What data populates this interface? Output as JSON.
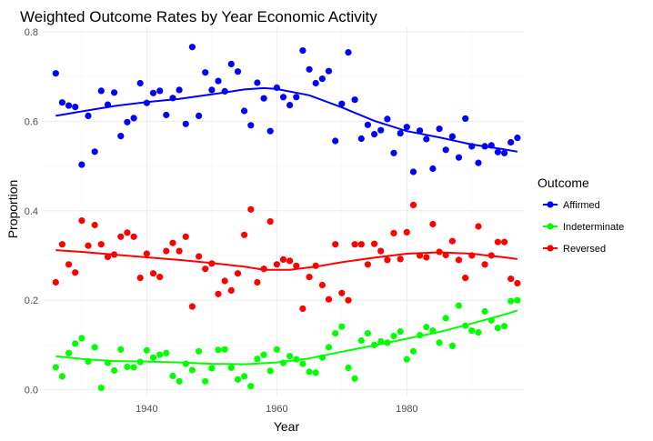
{
  "chart_data": {
    "type": "scatter",
    "title": "Weighted Outcome Rates by Year Economic Activity",
    "xlabel": "Year",
    "ylabel": "Proportion",
    "xlim": [
      1924,
      1998
    ],
    "ylim": [
      -0.015,
      0.81
    ],
    "x_ticks": [
      1940,
      1960,
      1980
    ],
    "x_tick_labels": [
      "1940",
      "1960",
      "1980"
    ],
    "y_ticks": [
      0.0,
      0.2,
      0.4,
      0.6,
      0.8
    ],
    "y_tick_labels": [
      "0.0",
      "0.2",
      "0.4",
      "0.6",
      "0.8"
    ],
    "grid": true,
    "legend": {
      "title": "Outcome",
      "position": "right"
    },
    "smoothed_trend_lines": true,
    "series": [
      {
        "name": "Affirmed",
        "color": "#0000ff",
        "points": [
          [
            1926,
            0.707
          ],
          [
            1927,
            0.642
          ],
          [
            1928,
            0.635
          ],
          [
            1929,
            0.632
          ],
          [
            1930,
            0.503
          ],
          [
            1931,
            0.612
          ],
          [
            1932,
            0.532
          ],
          [
            1933,
            0.668
          ],
          [
            1934,
            0.637
          ],
          [
            1935,
            0.664
          ],
          [
            1936,
            0.567
          ],
          [
            1937,
            0.598
          ],
          [
            1938,
            0.607
          ],
          [
            1939,
            0.685
          ],
          [
            1940,
            0.641
          ],
          [
            1941,
            0.663
          ],
          [
            1942,
            0.668
          ],
          [
            1943,
            0.614
          ],
          [
            1944,
            0.652
          ],
          [
            1945,
            0.67
          ],
          [
            1946,
            0.594
          ],
          [
            1947,
            0.766
          ],
          [
            1948,
            0.612
          ],
          [
            1949,
            0.709
          ],
          [
            1950,
            0.67
          ],
          [
            1951,
            0.69
          ],
          [
            1952,
            0.667
          ],
          [
            1953,
            0.728
          ],
          [
            1954,
            0.711
          ],
          [
            1955,
            0.623
          ],
          [
            1956,
            0.591
          ],
          [
            1957,
            0.686
          ],
          [
            1958,
            0.651
          ],
          [
            1959,
            0.578
          ],
          [
            1960,
            0.675
          ],
          [
            1961,
            0.654
          ],
          [
            1962,
            0.636
          ],
          [
            1963,
            0.654
          ],
          [
            1964,
            0.758
          ],
          [
            1965,
            0.716
          ],
          [
            1966,
            0.685
          ],
          [
            1967,
            0.695
          ],
          [
            1968,
            0.712
          ],
          [
            1969,
            0.556
          ],
          [
            1970,
            0.639
          ],
          [
            1971,
            0.754
          ],
          [
            1972,
            0.648
          ],
          [
            1973,
            0.561
          ],
          [
            1974,
            0.592
          ],
          [
            1975,
            0.571
          ],
          [
            1976,
            0.58
          ],
          [
            1977,
            0.605
          ],
          [
            1978,
            0.529
          ],
          [
            1979,
            0.573
          ],
          [
            1980,
            0.587
          ],
          [
            1981,
            0.487
          ],
          [
            1982,
            0.579
          ],
          [
            1983,
            0.56
          ],
          [
            1984,
            0.494
          ],
          [
            1985,
            0.583
          ],
          [
            1986,
            0.536
          ],
          [
            1987,
            0.566
          ],
          [
            1988,
            0.519
          ],
          [
            1989,
            0.606
          ],
          [
            1990,
            0.544
          ],
          [
            1991,
            0.507
          ],
          [
            1992,
            0.544
          ],
          [
            1993,
            0.546
          ],
          [
            1994,
            0.531
          ],
          [
            1995,
            0.529
          ],
          [
            1996,
            0.553
          ],
          [
            1997,
            0.563
          ]
        ],
        "trend": [
          [
            1926,
            0.612
          ],
          [
            1930,
            0.622
          ],
          [
            1935,
            0.634
          ],
          [
            1940,
            0.643
          ],
          [
            1945,
            0.65
          ],
          [
            1950,
            0.66
          ],
          [
            1955,
            0.671
          ],
          [
            1958,
            0.674
          ],
          [
            1960,
            0.672
          ],
          [
            1965,
            0.658
          ],
          [
            1970,
            0.631
          ],
          [
            1975,
            0.601
          ],
          [
            1980,
            0.578
          ],
          [
            1985,
            0.564
          ],
          [
            1990,
            0.548
          ],
          [
            1995,
            0.537
          ],
          [
            1997,
            0.532
          ]
        ]
      },
      {
        "name": "Indeterminate",
        "color": "#00ff00",
        "points": [
          [
            1926,
            0.05
          ],
          [
            1927,
            0.03
          ],
          [
            1928,
            0.082
          ],
          [
            1929,
            0.103
          ],
          [
            1930,
            0.115
          ],
          [
            1931,
            0.063
          ],
          [
            1932,
            0.095
          ],
          [
            1933,
            0.004
          ],
          [
            1934,
            0.06
          ],
          [
            1935,
            0.043
          ],
          [
            1936,
            0.09
          ],
          [
            1937,
            0.051
          ],
          [
            1938,
            0.05
          ],
          [
            1939,
            0.062
          ],
          [
            1940,
            0.088
          ],
          [
            1941,
            0.072
          ],
          [
            1942,
            0.078
          ],
          [
            1943,
            0.082
          ],
          [
            1944,
            0.031
          ],
          [
            1945,
            0.019
          ],
          [
            1946,
            0.058
          ],
          [
            1947,
            0.044
          ],
          [
            1948,
            0.086
          ],
          [
            1949,
            0.019
          ],
          [
            1950,
            0.048
          ],
          [
            1951,
            0.089
          ],
          [
            1952,
            0.09
          ],
          [
            1953,
            0.049
          ],
          [
            1954,
            0.023
          ],
          [
            1955,
            0.03
          ],
          [
            1956,
            0.008
          ],
          [
            1957,
            0.069
          ],
          [
            1958,
            0.078
          ],
          [
            1959,
            0.042
          ],
          [
            1960,
            0.09
          ],
          [
            1961,
            0.06
          ],
          [
            1962,
            0.075
          ],
          [
            1963,
            0.068
          ],
          [
            1964,
            0.058
          ],
          [
            1965,
            0.04
          ],
          [
            1966,
            0.038
          ],
          [
            1967,
            0.072
          ],
          [
            1968,
            0.095
          ],
          [
            1969,
            0.126
          ],
          [
            1970,
            0.141
          ],
          [
            1971,
            0.049
          ],
          [
            1972,
            0.025
          ],
          [
            1973,
            0.11
          ],
          [
            1974,
            0.126
          ],
          [
            1975,
            0.1
          ],
          [
            1976,
            0.108
          ],
          [
            1977,
            0.105
          ],
          [
            1978,
            0.12
          ],
          [
            1979,
            0.13
          ],
          [
            1980,
            0.068
          ],
          [
            1981,
            0.086
          ],
          [
            1982,
            0.122
          ],
          [
            1983,
            0.14
          ],
          [
            1984,
            0.132
          ],
          [
            1985,
            0.105
          ],
          [
            1986,
            0.16
          ],
          [
            1987,
            0.098
          ],
          [
            1988,
            0.188
          ],
          [
            1989,
            0.143
          ],
          [
            1990,
            0.132
          ],
          [
            1991,
            0.128
          ],
          [
            1992,
            0.175
          ],
          [
            1993,
            0.155
          ],
          [
            1994,
            0.138
          ],
          [
            1995,
            0.142
          ],
          [
            1996,
            0.198
          ],
          [
            1997,
            0.2
          ]
        ],
        "trend": [
          [
            1926,
            0.075
          ],
          [
            1930,
            0.069
          ],
          [
            1935,
            0.064
          ],
          [
            1940,
            0.063
          ],
          [
            1945,
            0.061
          ],
          [
            1950,
            0.058
          ],
          [
            1955,
            0.057
          ],
          [
            1960,
            0.061
          ],
          [
            1965,
            0.07
          ],
          [
            1970,
            0.085
          ],
          [
            1975,
            0.099
          ],
          [
            1980,
            0.114
          ],
          [
            1985,
            0.129
          ],
          [
            1990,
            0.148
          ],
          [
            1995,
            0.168
          ],
          [
            1997,
            0.177
          ]
        ]
      },
      {
        "name": "Reversed",
        "color": "#ff0000",
        "points": [
          [
            1926,
            0.24
          ],
          [
            1927,
            0.325
          ],
          [
            1928,
            0.28
          ],
          [
            1929,
            0.262
          ],
          [
            1930,
            0.378
          ],
          [
            1931,
            0.322
          ],
          [
            1932,
            0.368
          ],
          [
            1933,
            0.325
          ],
          [
            1934,
            0.297
          ],
          [
            1935,
            0.302
          ],
          [
            1936,
            0.342
          ],
          [
            1937,
            0.351
          ],
          [
            1938,
            0.342
          ],
          [
            1939,
            0.25
          ],
          [
            1940,
            0.304
          ],
          [
            1941,
            0.26
          ],
          [
            1942,
            0.252
          ],
          [
            1943,
            0.31
          ],
          [
            1944,
            0.328
          ],
          [
            1945,
            0.31
          ],
          [
            1946,
            0.342
          ],
          [
            1947,
            0.186
          ],
          [
            1948,
            0.298
          ],
          [
            1949,
            0.27
          ],
          [
            1950,
            0.282
          ],
          [
            1951,
            0.214
          ],
          [
            1952,
            0.243
          ],
          [
            1953,
            0.222
          ],
          [
            1954,
            0.26
          ],
          [
            1955,
            0.346
          ],
          [
            1956,
            0.403
          ],
          [
            1957,
            0.24
          ],
          [
            1958,
            0.27
          ],
          [
            1959,
            0.376
          ],
          [
            1960,
            0.28
          ],
          [
            1961,
            0.291
          ],
          [
            1962,
            0.288
          ],
          [
            1963,
            0.277
          ],
          [
            1964,
            0.181
          ],
          [
            1965,
            0.252
          ],
          [
            1966,
            0.277
          ],
          [
            1967,
            0.234
          ],
          [
            1968,
            0.202
          ],
          [
            1969,
            0.325
          ],
          [
            1970,
            0.216
          ],
          [
            1971,
            0.2
          ],
          [
            1972,
            0.325
          ],
          [
            1973,
            0.325
          ],
          [
            1974,
            0.28
          ],
          [
            1975,
            0.326
          ],
          [
            1976,
            0.31
          ],
          [
            1977,
            0.29
          ],
          [
            1978,
            0.35
          ],
          [
            1979,
            0.292
          ],
          [
            1980,
            0.352
          ],
          [
            1981,
            0.413
          ],
          [
            1982,
            0.3
          ],
          [
            1983,
            0.296
          ],
          [
            1984,
            0.37
          ],
          [
            1985,
            0.308
          ],
          [
            1986,
            0.301
          ],
          [
            1987,
            0.332
          ],
          [
            1988,
            0.29
          ],
          [
            1989,
            0.25
          ],
          [
            1990,
            0.3
          ],
          [
            1991,
            0.365
          ],
          [
            1992,
            0.28
          ],
          [
            1993,
            0.3
          ],
          [
            1994,
            0.33
          ],
          [
            1995,
            0.33
          ],
          [
            1996,
            0.248
          ],
          [
            1997,
            0.238
          ]
        ],
        "trend": [
          [
            1926,
            0.312
          ],
          [
            1930,
            0.308
          ],
          [
            1935,
            0.302
          ],
          [
            1940,
            0.296
          ],
          [
            1945,
            0.29
          ],
          [
            1950,
            0.283
          ],
          [
            1955,
            0.275
          ],
          [
            1958,
            0.268
          ],
          [
            1962,
            0.268
          ],
          [
            1966,
            0.275
          ],
          [
            1970,
            0.285
          ],
          [
            1975,
            0.295
          ],
          [
            1980,
            0.304
          ],
          [
            1985,
            0.307
          ],
          [
            1990,
            0.304
          ],
          [
            1995,
            0.296
          ],
          [
            1997,
            0.292
          ]
        ]
      }
    ]
  }
}
